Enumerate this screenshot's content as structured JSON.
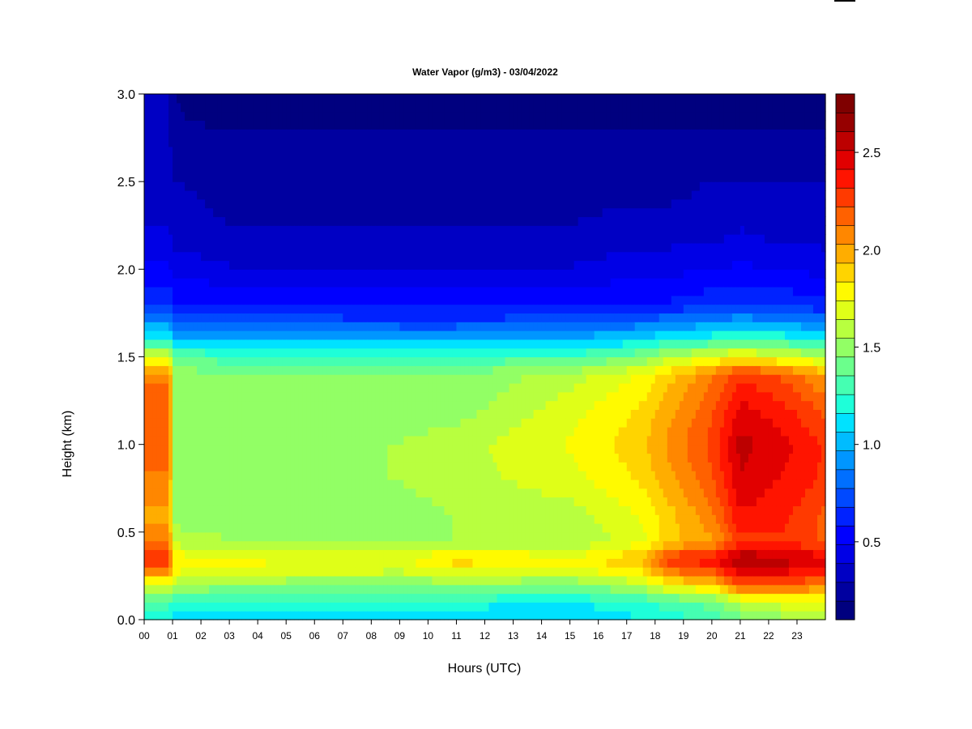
{
  "chart_data": {
    "type": "heatmap",
    "title": "Water Vapor (g/m3) - 03/04/2022",
    "xlabel": "Hours (UTC)",
    "ylabel": "Height (km)",
    "x_ticks": [
      "00",
      "01",
      "02",
      "03",
      "04",
      "05",
      "06",
      "07",
      "08",
      "09",
      "10",
      "11",
      "12",
      "13",
      "14",
      "15",
      "16",
      "17",
      "18",
      "19",
      "20",
      "21",
      "22",
      "23"
    ],
    "xlim": [
      0,
      24
    ],
    "ylim": [
      0.0,
      3.0
    ],
    "y_ticks": [
      "0.0",
      "0.5",
      "1.0",
      "1.5",
      "2.0",
      "2.5",
      "3.0"
    ],
    "colorbar": {
      "range": [
        0.1,
        2.8
      ],
      "ticks": [
        "0.5",
        "1.0",
        "1.5",
        "2.0",
        "2.5"
      ],
      "colors": [
        "#00007f",
        "#0000a0",
        "#0000c4",
        "#0000e6",
        "#0000ff",
        "#0022ff",
        "#0049ff",
        "#006fff",
        "#0096ff",
        "#00bcff",
        "#00e2ff",
        "#1effd9",
        "#45ffb2",
        "#6bff8c",
        "#92ff65",
        "#b8ff3f",
        "#dfff18",
        "#fffa00",
        "#ffd400",
        "#ffad00",
        "#ff8700",
        "#ff6100",
        "#ff3a00",
        "#ff1400",
        "#e10000",
        "#bc0000",
        "#960000",
        "#7f0000"
      ]
    },
    "profile_heights_km": [
      0.0,
      0.1,
      0.2,
      0.3,
      0.35,
      0.45,
      0.6,
      0.8,
      1.0,
      1.2,
      1.4,
      1.5,
      1.6,
      1.7,
      1.8,
      2.0,
      2.2,
      2.5,
      2.8,
      3.0
    ],
    "profiles": [
      {
        "hour": 0.0,
        "values": [
          1.2,
          1.3,
          1.7,
          2.2,
          2.3,
          2.1,
          2.0,
          2.1,
          2.2,
          2.2,
          2.1,
          1.7,
          1.2,
          0.9,
          0.7,
          0.5,
          0.4,
          0.35,
          0.3,
          0.3
        ]
      },
      {
        "hour": 0.9,
        "values": [
          1.2,
          1.3,
          1.7,
          2.2,
          2.3,
          2.1,
          2.0,
          2.1,
          2.2,
          2.2,
          2.1,
          1.7,
          1.2,
          0.9,
          0.7,
          0.5,
          0.4,
          0.35,
          0.3,
          0.3
        ]
      },
      {
        "hour": 1.0,
        "values": [
          1.1,
          1.2,
          1.6,
          1.8,
          1.8,
          1.6,
          1.5,
          1.5,
          1.5,
          1.5,
          1.5,
          1.4,
          1.0,
          0.8,
          0.6,
          0.45,
          0.35,
          0.3,
          0.2,
          0.2
        ]
      },
      {
        "hour": 3.0,
        "values": [
          1.1,
          1.2,
          1.5,
          1.75,
          1.75,
          1.55,
          1.5,
          1.5,
          1.5,
          1.5,
          1.45,
          1.3,
          1.0,
          0.75,
          0.6,
          0.4,
          0.3,
          0.25,
          0.2,
          0.15
        ]
      },
      {
        "hour": 9.0,
        "values": [
          1.1,
          1.2,
          1.45,
          1.7,
          1.7,
          1.5,
          1.5,
          1.55,
          1.55,
          1.5,
          1.45,
          1.3,
          1.0,
          0.7,
          0.55,
          0.4,
          0.3,
          0.25,
          0.2,
          0.15
        ]
      },
      {
        "hour": 11.0,
        "values": [
          1.1,
          1.2,
          1.5,
          1.8,
          1.9,
          1.55,
          1.55,
          1.6,
          1.6,
          1.5,
          1.45,
          1.3,
          1.0,
          0.7,
          0.55,
          0.4,
          0.3,
          0.25,
          0.2,
          0.15
        ]
      },
      {
        "hour": 15.0,
        "values": [
          1.05,
          1.15,
          1.45,
          1.75,
          1.75,
          1.55,
          1.6,
          1.7,
          1.75,
          1.7,
          1.6,
          1.3,
          1.0,
          0.75,
          0.55,
          0.4,
          0.3,
          0.25,
          0.2,
          0.15
        ]
      },
      {
        "hour": 17.5,
        "values": [
          1.15,
          1.25,
          1.6,
          1.9,
          1.95,
          1.7,
          1.75,
          1.85,
          1.9,
          1.85,
          1.75,
          1.45,
          1.1,
          0.8,
          0.6,
          0.45,
          0.35,
          0.25,
          0.2,
          0.15
        ]
      },
      {
        "hour": 18.5,
        "values": [
          1.2,
          1.3,
          1.8,
          2.2,
          2.3,
          1.9,
          1.9,
          2.0,
          2.05,
          2.0,
          1.9,
          1.6,
          1.2,
          0.85,
          0.6,
          0.45,
          0.35,
          0.25,
          0.2,
          0.15
        ]
      },
      {
        "hour": 20.0,
        "values": [
          1.3,
          1.4,
          1.9,
          2.3,
          2.4,
          2.0,
          2.1,
          2.2,
          2.25,
          2.2,
          2.1,
          1.7,
          1.25,
          0.9,
          0.65,
          0.5,
          0.35,
          0.3,
          0.2,
          0.15
        ]
      },
      {
        "hour": 21.0,
        "values": [
          1.4,
          1.6,
          2.2,
          2.55,
          2.6,
          2.3,
          2.4,
          2.5,
          2.55,
          2.45,
          2.3,
          1.8,
          1.3,
          0.95,
          0.7,
          0.5,
          0.4,
          0.3,
          0.2,
          0.15
        ]
      },
      {
        "hour": 22.5,
        "values": [
          1.5,
          1.7,
          2.2,
          2.5,
          2.55,
          2.3,
          2.35,
          2.4,
          2.45,
          2.35,
          2.2,
          1.7,
          1.25,
          0.9,
          0.65,
          0.5,
          0.35,
          0.3,
          0.2,
          0.15
        ]
      },
      {
        "hour": 24.0,
        "values": [
          1.5,
          1.7,
          2.1,
          2.4,
          2.45,
          2.2,
          2.2,
          2.3,
          2.3,
          2.2,
          2.0,
          1.6,
          1.2,
          0.85,
          0.6,
          0.45,
          0.35,
          0.3,
          0.2,
          0.15
        ]
      }
    ],
    "grid": false,
    "colorbar_position": "right"
  }
}
